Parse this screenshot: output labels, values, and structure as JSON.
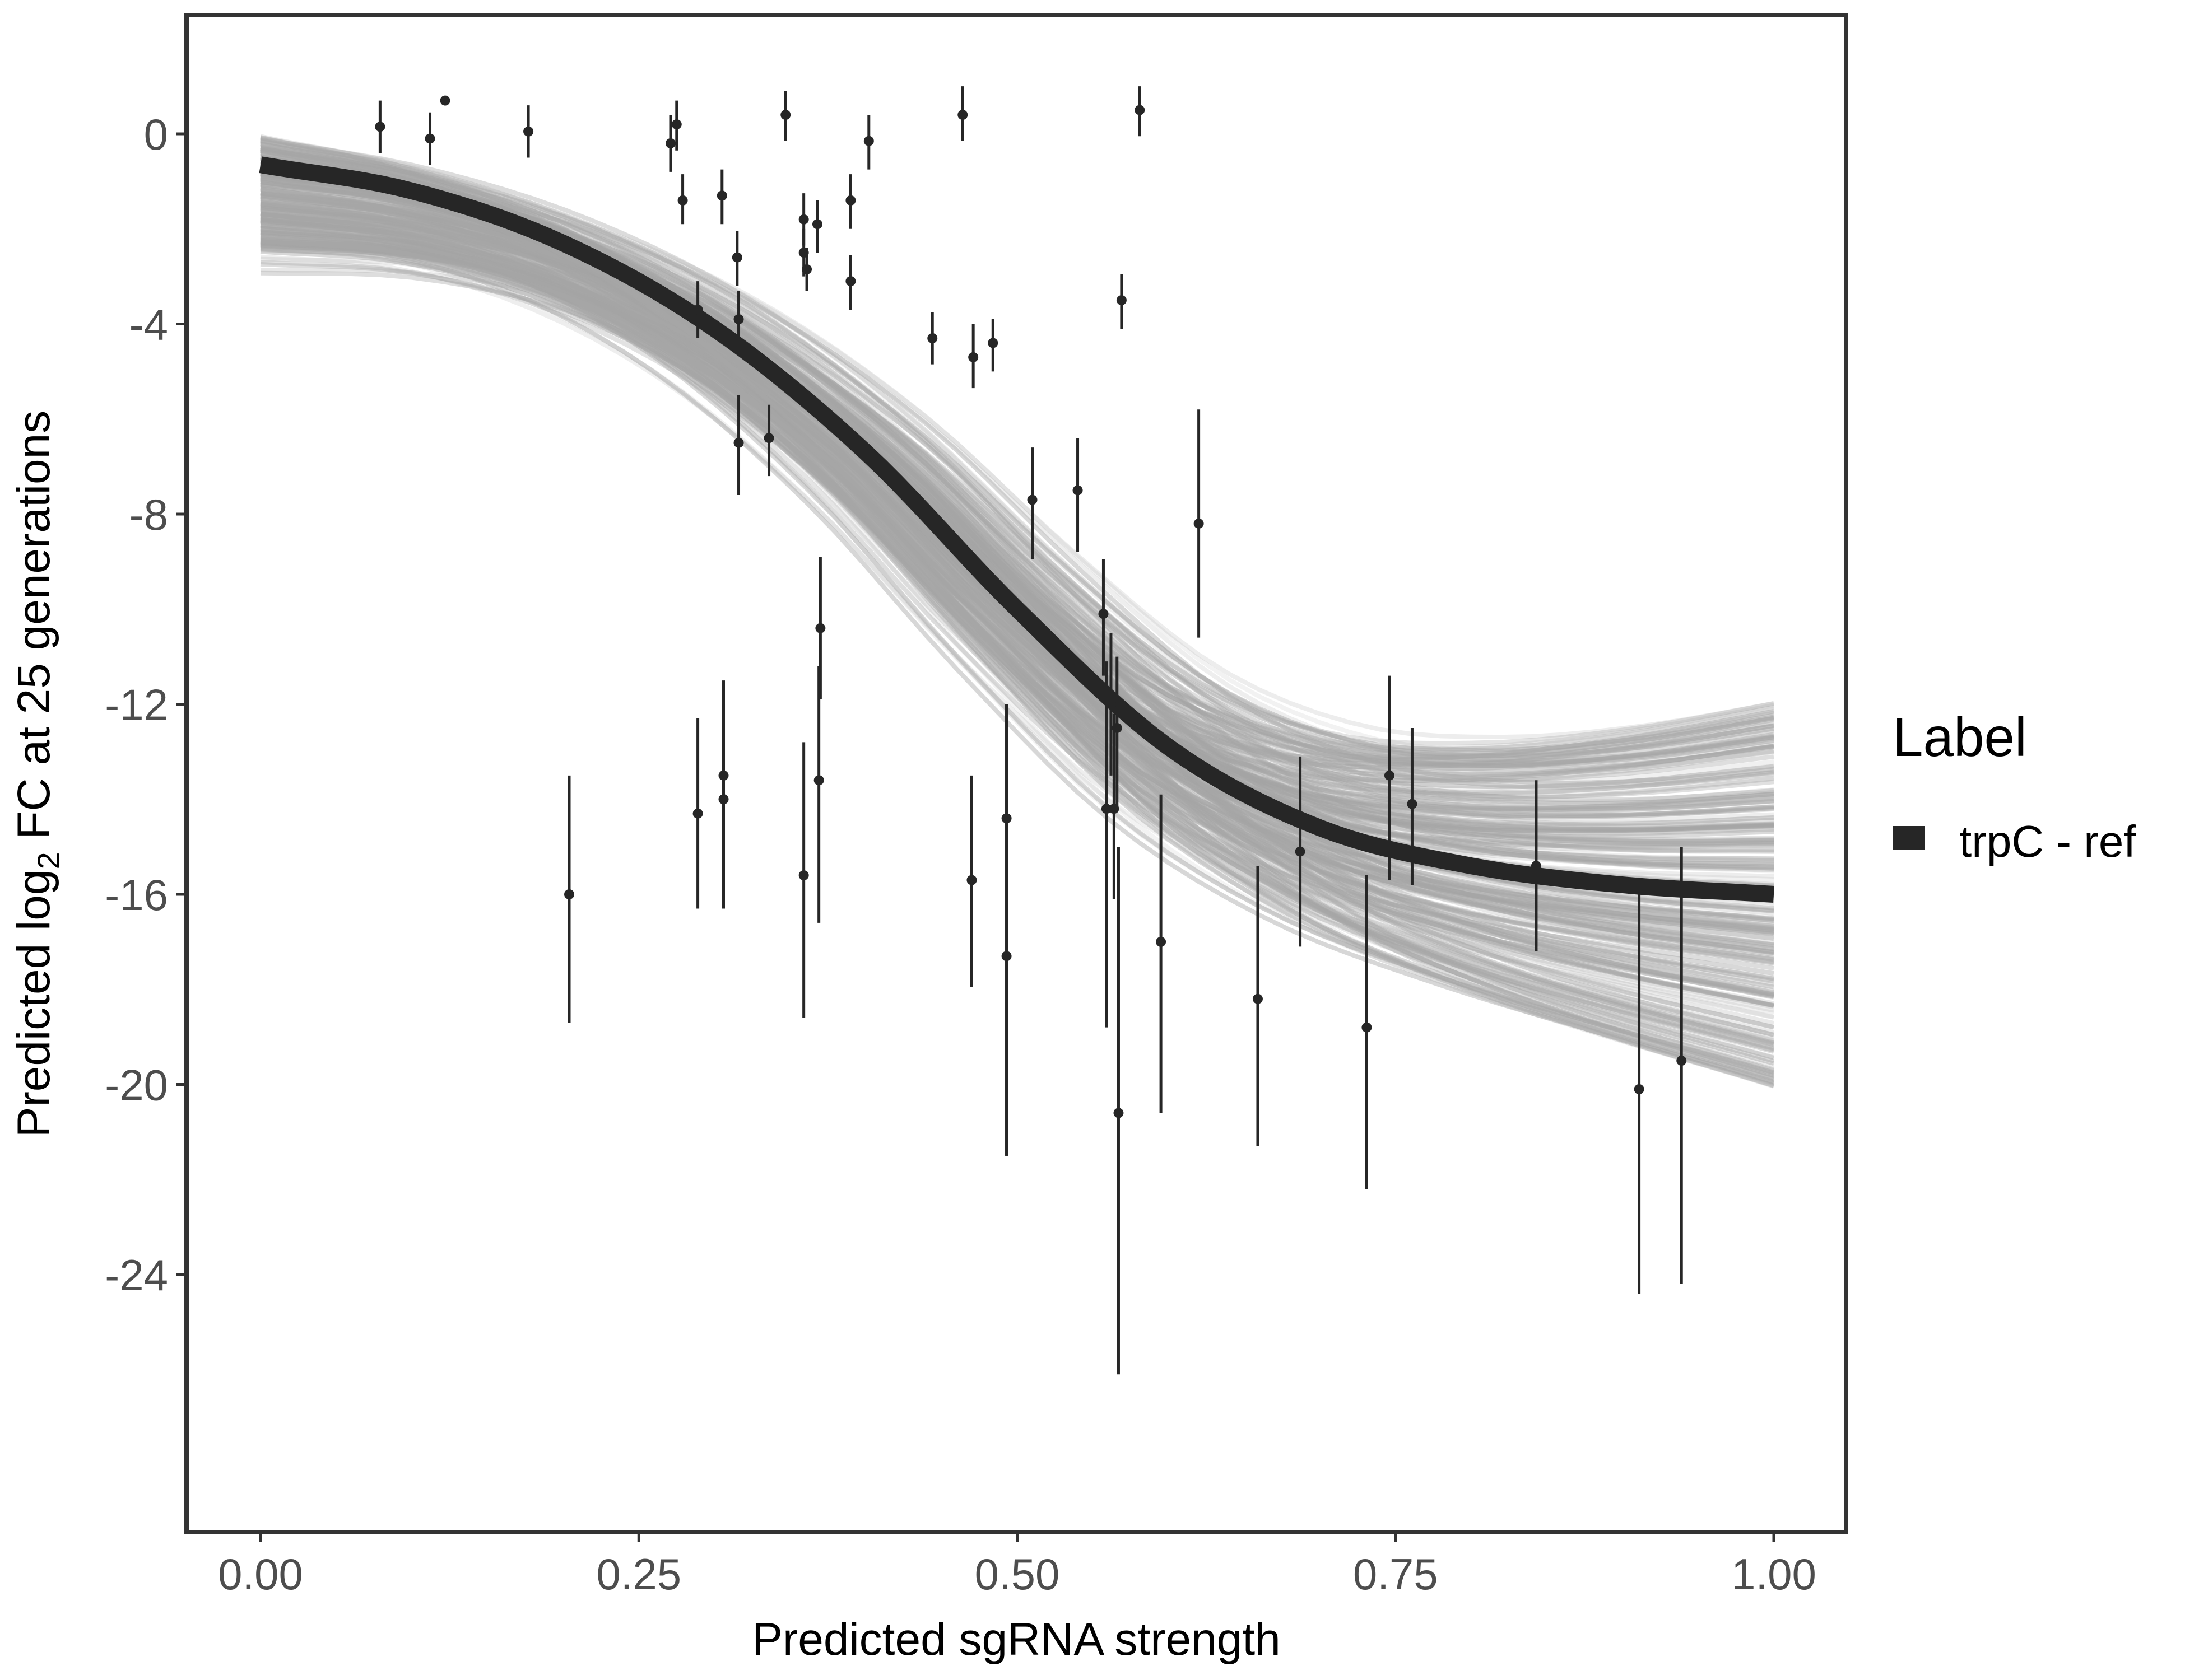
{
  "chart_data": {
    "type": "scatter",
    "title": "",
    "xlabel": "Predicted sgRNA strength",
    "ylabel_main": "Predicted  log",
    "ylabel_sub": "2",
    "ylabel_rest": " FC at 25 generations",
    "xlim": [
      -0.05,
      1.05
    ],
    "ylim": [
      -29.5,
      2.5
    ],
    "x_ticks": [
      0,
      0.25,
      0.5,
      0.75,
      1
    ],
    "x_tick_labels": [
      "0.00",
      "0.25",
      "0.50",
      "0.75",
      "1.00"
    ],
    "y_ticks": [
      0,
      -4,
      -8,
      -12,
      -16,
      -20,
      -24
    ],
    "y_tick_labels": [
      "0",
      "-4",
      "-8",
      "-12",
      "-16",
      "-20",
      "-24"
    ],
    "grid": false,
    "legend": {
      "title": "Label",
      "position": "right",
      "entries": [
        {
          "label": "trpC - ref",
          "color": "#262626"
        }
      ]
    },
    "colors": {
      "fit": "#262626",
      "posterior": "#a6a6a6",
      "points": "#262626",
      "frame": "#333333"
    },
    "fit_curve": {
      "x": [
        0,
        0.1,
        0.2,
        0.3,
        0.4,
        0.5,
        0.6,
        0.7,
        0.8,
        0.9,
        1.0
      ],
      "y": [
        -0.65,
        -1.2,
        -2.3,
        -4.1,
        -6.7,
        -10.0,
        -12.9,
        -14.6,
        -15.4,
        -15.8,
        -16.0
      ]
    },
    "points": [
      {
        "x": 0.079,
        "y": 0.15,
        "lo": -0.4,
        "hi": 0.7
      },
      {
        "x": 0.112,
        "y": -0.1,
        "lo": -0.65,
        "hi": 0.45
      },
      {
        "x": 0.122,
        "y": 0.7,
        "lo": 0.7,
        "hi": 0.7
      },
      {
        "x": 0.177,
        "y": 0.05,
        "lo": -0.5,
        "hi": 0.6
      },
      {
        "x": 0.204,
        "y": -16.0,
        "lo": -18.7,
        "hi": -13.5
      },
      {
        "x": 0.271,
        "y": -0.2,
        "lo": -0.8,
        "hi": 0.4
      },
      {
        "x": 0.275,
        "y": 0.2,
        "lo": -0.35,
        "hi": 0.7
      },
      {
        "x": 0.279,
        "y": -1.4,
        "lo": -1.9,
        "hi": -0.85
      },
      {
        "x": 0.289,
        "y": -3.7,
        "lo": -4.3,
        "hi": -3.1
      },
      {
        "x": 0.289,
        "y": -14.3,
        "lo": -16.3,
        "hi": -12.3
      },
      {
        "x": 0.305,
        "y": -1.3,
        "lo": -1.9,
        "hi": -0.75
      },
      {
        "x": 0.306,
        "y": -13.5,
        "lo": -15.5,
        "hi": -11.5
      },
      {
        "x": 0.306,
        "y": -14.0,
        "lo": -16.3,
        "hi": -12.0
      },
      {
        "x": 0.315,
        "y": -2.6,
        "lo": -3.2,
        "hi": -2.05
      },
      {
        "x": 0.316,
        "y": -3.9,
        "lo": -4.5,
        "hi": -3.3
      },
      {
        "x": 0.316,
        "y": -6.5,
        "lo": -7.6,
        "hi": -5.5
      },
      {
        "x": 0.336,
        "y": -6.4,
        "lo": -7.2,
        "hi": -5.7
      },
      {
        "x": 0.347,
        "y": 0.4,
        "lo": -0.15,
        "hi": 0.9
      },
      {
        "x": 0.359,
        "y": -1.8,
        "lo": -2.35,
        "hi": -1.25
      },
      {
        "x": 0.359,
        "y": -2.5,
        "lo": -3.0,
        "hi": -2.0
      },
      {
        "x": 0.361,
        "y": -2.85,
        "lo": -3.3,
        "hi": -2.4
      },
      {
        "x": 0.359,
        "y": -15.6,
        "lo": -18.6,
        "hi": -12.8
      },
      {
        "x": 0.368,
        "y": -1.9,
        "lo": -2.5,
        "hi": -1.4
      },
      {
        "x": 0.37,
        "y": -10.4,
        "lo": -11.9,
        "hi": -8.9
      },
      {
        "x": 0.369,
        "y": -13.6,
        "lo": -16.6,
        "hi": -11.2
      },
      {
        "x": 0.39,
        "y": -1.4,
        "lo": -2.0,
        "hi": -0.85
      },
      {
        "x": 0.39,
        "y": -3.1,
        "lo": -3.7,
        "hi": -2.55
      },
      {
        "x": 0.402,
        "y": -0.15,
        "lo": -0.75,
        "hi": 0.4
      },
      {
        "x": 0.444,
        "y": -4.3,
        "lo": -4.85,
        "hi": -3.75
      },
      {
        "x": 0.464,
        "y": 0.4,
        "lo": -0.15,
        "hi": 1.0
      },
      {
        "x": 0.47,
        "y": -15.7,
        "lo": -17.95,
        "hi": -13.5
      },
      {
        "x": 0.471,
        "y": -4.7,
        "lo": -5.35,
        "hi": -4.0
      },
      {
        "x": 0.484,
        "y": -4.4,
        "lo": -5.0,
        "hi": -3.9
      },
      {
        "x": 0.493,
        "y": -14.4,
        "lo": -21.5,
        "hi": -12.0
      },
      {
        "x": 0.493,
        "y": -17.3,
        "lo": -21.5,
        "hi": -12.0
      },
      {
        "x": 0.51,
        "y": -7.7,
        "lo": -8.95,
        "hi": -6.6
      },
      {
        "x": 0.54,
        "y": -7.5,
        "lo": -8.8,
        "hi": -6.4
      },
      {
        "x": 0.557,
        "y": -10.1,
        "lo": -11.4,
        "hi": -8.95
      },
      {
        "x": 0.559,
        "y": -14.2,
        "lo": -18.8,
        "hi": -11.1
      },
      {
        "x": 0.562,
        "y": -12.0,
        "lo": -13.5,
        "hi": -10.5
      },
      {
        "x": 0.564,
        "y": -14.2,
        "lo": -16.1,
        "hi": -12.2
      },
      {
        "x": 0.566,
        "y": -12.5,
        "lo": -14.2,
        "hi": -11.0
      },
      {
        "x": 0.567,
        "y": -20.6,
        "lo": -26.1,
        "hi": -15.0
      },
      {
        "x": 0.569,
        "y": -3.5,
        "lo": -4.1,
        "hi": -2.95
      },
      {
        "x": 0.581,
        "y": 0.5,
        "lo": -0.05,
        "hi": 1.0
      },
      {
        "x": 0.595,
        "y": -17.0,
        "lo": -20.6,
        "hi": -13.9
      },
      {
        "x": 0.62,
        "y": -8.2,
        "lo": -10.6,
        "hi": -5.8
      },
      {
        "x": 0.659,
        "y": -18.2,
        "lo": -21.3,
        "hi": -15.4
      },
      {
        "x": 0.687,
        "y": -15.1,
        "lo": -17.1,
        "hi": -13.1
      },
      {
        "x": 0.731,
        "y": -18.8,
        "lo": -22.2,
        "hi": -15.6
      },
      {
        "x": 0.746,
        "y": -13.5,
        "lo": -15.7,
        "hi": -11.4
      },
      {
        "x": 0.761,
        "y": -14.1,
        "lo": -15.8,
        "hi": -12.5
      },
      {
        "x": 0.843,
        "y": -15.4,
        "lo": -17.2,
        "hi": -13.6
      },
      {
        "x": 0.911,
        "y": -20.1,
        "lo": -24.4,
        "hi": -15.8
      },
      {
        "x": 0.939,
        "y": -19.5,
        "lo": -24.2,
        "hi": -15.0
      }
    ]
  }
}
